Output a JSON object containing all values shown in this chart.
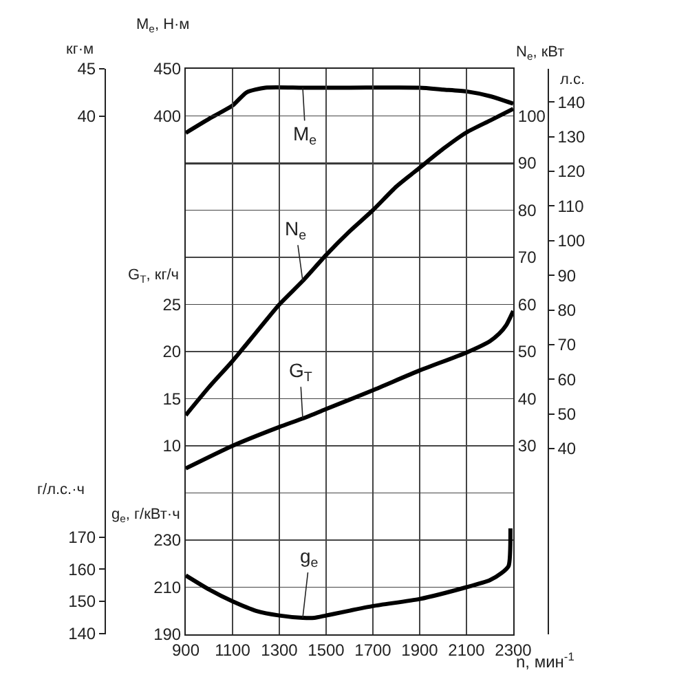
{
  "chart_data": [
    {
      "type": "line",
      "ylabel": "M$_{e}$, Н·м",
      "y2label": "кг·м",
      "xlim": [
        900,
        2300
      ],
      "xticks": [
        900,
        1100,
        1300,
        1500,
        1700,
        1900,
        2100,
        2300
      ],
      "ylim": [
        350,
        450
      ],
      "yticks": [
        400,
        450
      ],
      "y2lim": [
        35,
        45
      ],
      "y2ticks": [
        40,
        45
      ],
      "tick_labels": "y",
      "series": [
        {
          "name": "M$_{e}$",
          "color": "#000000",
          "x": [
            900,
            1000,
            1100,
            1160,
            1240,
            1400,
            1600,
            1900,
            2000,
            2100,
            2200,
            2300
          ],
          "values": [
            382,
            397,
            411,
            425,
            430,
            430,
            430,
            430,
            428,
            426,
            421,
            413
          ]
        }
      ]
    },
    {
      "type": "line",
      "ylabel": "N$_{e}$, кВт",
      "y2label": "л.с.",
      "xlim": [
        900,
        2300
      ],
      "xticks": [
        900,
        1100,
        1300,
        1500,
        1700,
        1900,
        2100,
        2300
      ],
      "ylim": [
        -10,
        110
      ],
      "yticks": [
        30,
        40,
        50,
        60,
        70,
        80,
        90,
        100
      ],
      "y2lim": [
        -13.6,
        149.6
      ],
      "y2ticks": [
        40,
        50,
        60,
        70,
        80,
        90,
        100,
        110,
        120,
        130,
        140
      ],
      "grid": true,
      "tick_labels": "y",
      "series": [
        {
          "name": "N$_{e}$",
          "color": "#000000",
          "x": [
            900,
            1000,
            1100,
            1200,
            1300,
            1400,
            1500,
            1600,
            1700,
            1800,
            1900,
            2000,
            2100,
            2200,
            2300
          ],
          "values": [
            36.5,
            42.5,
            48,
            54,
            60,
            65,
            70.5,
            75.5,
            80,
            85,
            89,
            93,
            96.5,
            99,
            101.5
          ]
        }
      ]
    },
    {
      "type": "line",
      "ylabel": "G$_{T}$, кг/ч",
      "xlim": [
        900,
        2300
      ],
      "xticks": [
        900,
        1100,
        1300,
        1500,
        1700,
        1900,
        2100,
        2300
      ],
      "ylim": [
        -10,
        50
      ],
      "yticks": [
        10,
        15,
        20,
        25
      ],
      "tick_labels": "y",
      "series": [
        {
          "name": "G$_{T}$",
          "color": "#000000",
          "x": [
            900,
            1100,
            1300,
            1400,
            1500,
            1700,
            1900,
            2100,
            2200,
            2240,
            2270,
            2300
          ],
          "values": [
            7.6,
            10,
            12,
            12.9,
            13.9,
            15.9,
            18,
            19.9,
            21.1,
            21.9,
            22.8,
            24.3
          ]
        }
      ]
    },
    {
      "type": "line",
      "xlabel": "n, мин$^{-1}$",
      "ylabel": "g$_{e}$, г/кВт·ч",
      "y2label": "г/л.с.·ч",
      "xlim": [
        900,
        2300
      ],
      "xticks": [
        900,
        1100,
        1300,
        1500,
        1700,
        1900,
        2100,
        2300
      ],
      "ylim": [
        190,
        430
      ],
      "yticks": [
        190,
        210,
        230,
        {
          "value": 250,
          "label": null
        }
      ],
      "y2lim": [
        139.7,
        316.2
      ],
      "y2ticks": [
        140,
        150,
        160,
        170
      ],
      "grid": "y",
      "series": [
        {
          "name": "g$_{e}$",
          "color": "#000000",
          "x": [
            900,
            1000,
            1100,
            1200,
            1300,
            1400,
            1450,
            1500,
            1700,
            1900,
            2100,
            2200,
            2250,
            2280,
            2288
          ],
          "values": [
            215,
            209,
            204,
            200,
            198,
            197,
            197,
            198,
            202,
            205,
            210,
            213,
            216,
            219,
            235
          ]
        }
      ]
    }
  ]
}
